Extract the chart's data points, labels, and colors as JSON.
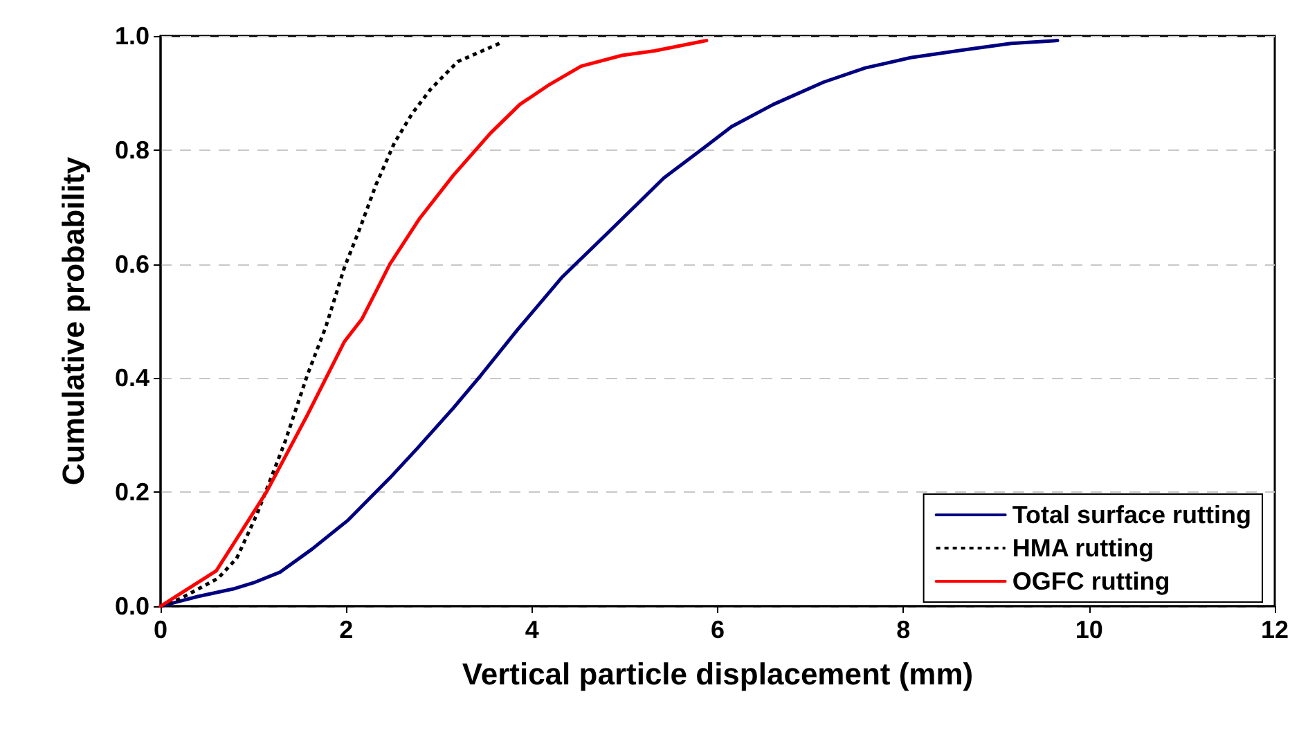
{
  "chart_data": {
    "type": "line",
    "xlabel": "Vertical particle displacement (mm)",
    "ylabel": "Cumulative probability",
    "xlim": [
      0,
      12
    ],
    "xticks": [
      0,
      2,
      4,
      6,
      8,
      10,
      12
    ],
    "ylim": [
      0,
      1
    ],
    "yticks": [
      {
        "value": 0,
        "label": "0.0"
      },
      0.2,
      0.4,
      0.6,
      0.8,
      {
        "value": 1,
        "label": "1.0"
      }
    ],
    "grid": "y",
    "legend": "bottom right",
    "marker": "none",
    "series": [
      {
        "name": "Total surface rutting",
        "color": "#000080",
        "line_style": "solid",
        "x": [
          0,
          0.4,
          0.8,
          1.0,
          1.29,
          1.63,
          2.02,
          2.47,
          2.76,
          3.15,
          3.45,
          3.84,
          4.33,
          4.78,
          5.42,
          5.86,
          6.15,
          6.6,
          7.14,
          7.59,
          8.08,
          8.67,
          9.16,
          9.66
        ],
        "values": [
          0,
          0.017,
          0.031,
          0.041,
          0.06,
          0.1,
          0.151,
          0.225,
          0.276,
          0.347,
          0.405,
          0.484,
          0.578,
          0.649,
          0.751,
          0.805,
          0.841,
          0.88,
          0.919,
          0.944,
          0.962,
          0.976,
          0.987,
          0.992
        ]
      },
      {
        "name": "HMA rutting",
        "color": "#000000",
        "line_style": "dotted",
        "x": [
          0,
          0.21,
          0.62,
          0.82,
          1.04,
          1.34,
          1.58,
          1.78,
          1.98,
          2.15,
          2.32,
          2.52,
          2.71,
          2.91,
          3.2,
          3.65
        ],
        "values": [
          0,
          0.013,
          0.049,
          0.084,
          0.162,
          0.288,
          0.405,
          0.49,
          0.594,
          0.664,
          0.739,
          0.813,
          0.864,
          0.907,
          0.955,
          0.987
        ]
      },
      {
        "name": "OGFC rutting",
        "color": "#ff0000",
        "line_style": "solid",
        "x": [
          0,
          0.6,
          1.14,
          1.58,
          1.98,
          2.17,
          2.47,
          2.79,
          3.15,
          3.55,
          3.87,
          4.19,
          4.53,
          4.97,
          5.32,
          5.88
        ],
        "values": [
          0,
          0.062,
          0.2,
          0.335,
          0.464,
          0.504,
          0.6,
          0.68,
          0.755,
          0.829,
          0.88,
          0.915,
          0.947,
          0.966,
          0.974,
          0.992
        ]
      }
    ]
  }
}
